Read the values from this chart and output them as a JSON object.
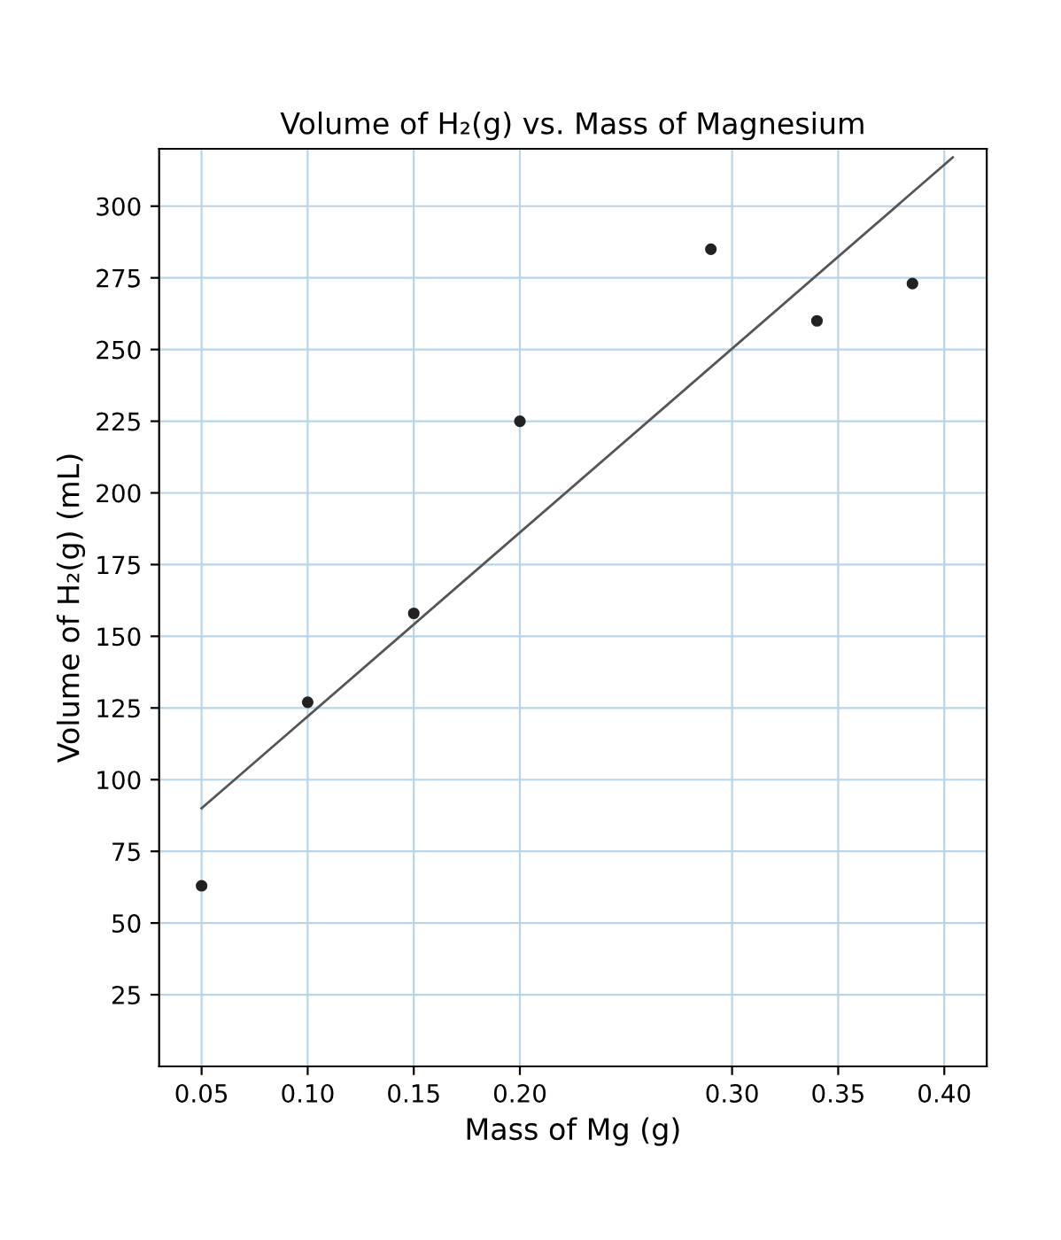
{
  "chart_data": {
    "type": "scatter",
    "title": "Volume of H₂(g) vs. Mass of Magnesium",
    "xlabel": "Mass of Mg (g)",
    "ylabel": "Volume of H₂(g) (mL)",
    "series": [
      {
        "color": "#222222",
        "marker": "circle",
        "x": [
          0.05,
          0.1,
          0.15,
          0.2,
          0.29,
          0.34,
          0.385
        ],
        "values": [
          63,
          127,
          158,
          225,
          285,
          260,
          273
        ]
      },
      {
        "type": "line",
        "color": "#555555",
        "marker": "none",
        "x": [
          0.05,
          0.404
        ],
        "values": [
          90,
          317
        ]
      }
    ],
    "xlim": [
      0.03,
      0.42
    ],
    "ylim": [
      0,
      320
    ],
    "xticks": [
      0.05,
      {
        "value": 0.1,
        "label": "0.10"
      },
      0.15,
      {
        "value": 0.2,
        "label": "0.20"
      },
      {
        "value": 0.3,
        "label": "0.30"
      },
      0.35,
      {
        "value": 0.4,
        "label": "0.40"
      }
    ],
    "yticks": [
      25,
      50,
      75,
      100,
      125,
      150,
      175,
      200,
      225,
      250,
      275,
      300
    ],
    "grid": true
  }
}
